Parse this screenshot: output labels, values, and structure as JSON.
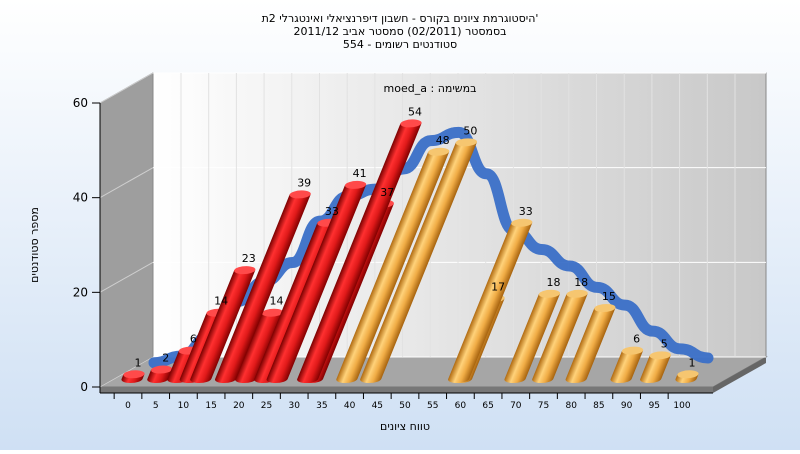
{
  "chart_data": {
    "type": "bar",
    "title_lines": [
      "היסטוגרמת ציונים בקורס - חשבון דיפרנציאלי ואינטגרלי 2ת'",
      "בסמסטר  (02/2011)  סמסטר אביב 2011/12",
      "554 - סטודנטים רשומים"
    ],
    "legend_label": "moed_a : במשימה",
    "xlabel": "טווח ציונים",
    "ylabel": "מספר סטודנטים",
    "ylim": [
      0,
      60
    ],
    "yticks": [
      0,
      20,
      40,
      60
    ],
    "categories": [
      "0",
      "5",
      "10",
      "15",
      "20",
      "25",
      "30",
      "35",
      "40",
      "45",
      "50",
      "55",
      "60",
      "65",
      "70",
      "75",
      "80",
      "85",
      "90",
      "95",
      "100"
    ],
    "values": [
      1,
      2,
      6,
      14,
      23,
      14,
      39,
      33,
      41,
      37,
      54,
      48,
      50,
      17,
      33,
      18,
      18,
      15,
      6,
      5,
      1
    ],
    "fail_color": "#d81818",
    "pass_color": "#e6a842",
    "curve_color": "#3a6fc7",
    "wall_color": "#a8a8a8",
    "background_color": "#d6e6f7",
    "grid": true
  }
}
